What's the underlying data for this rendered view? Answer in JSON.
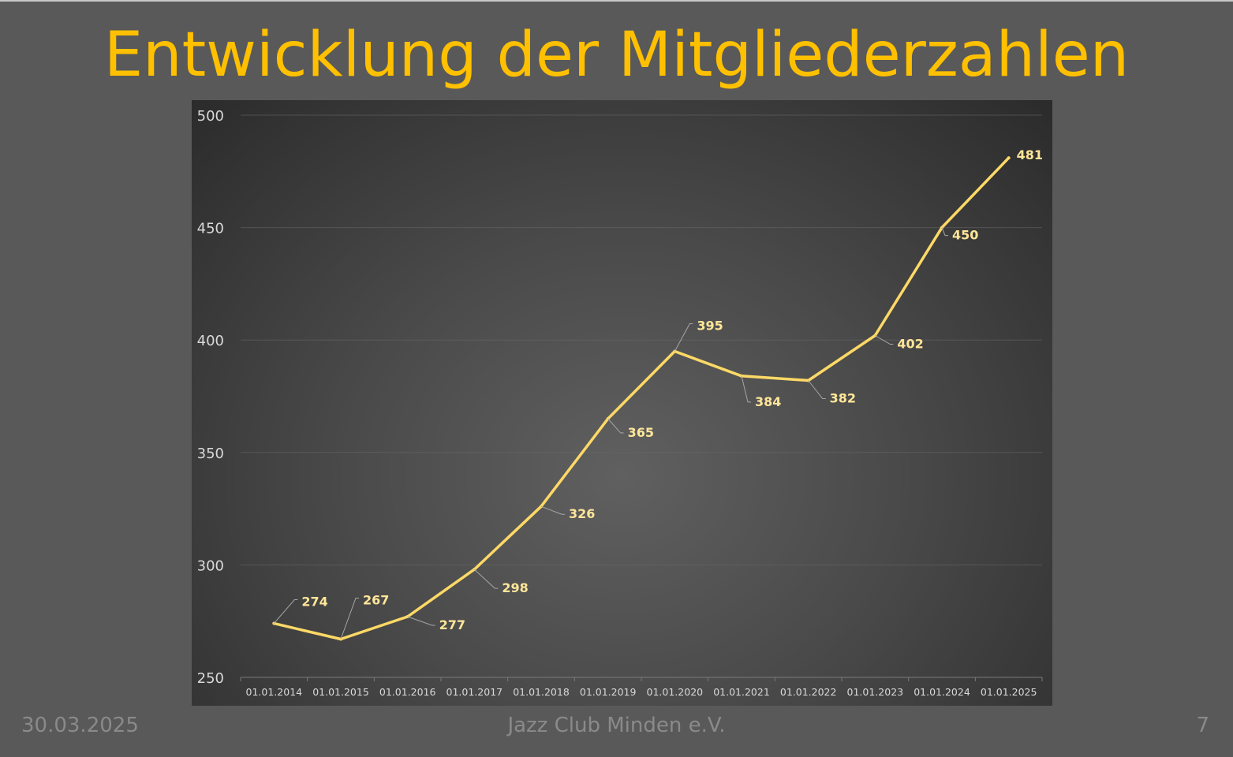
{
  "slide": {
    "title": "Entwicklung der Mitgliederzahlen",
    "footer_date": "30.03.2025",
    "footer_center": "Jazz Club Minden e.V.",
    "page_number": "7"
  },
  "colors": {
    "background": "#595959",
    "title": "#ffc000",
    "line": "#ffd966",
    "data_labels": "#ffe699",
    "axis_text": "#d9d9d9",
    "footer_text": "#8a8a8a"
  },
  "chart_data": {
    "type": "line",
    "categories": [
      "01.01.2014",
      "01.01.2015",
      "01.01.2016",
      "01.01.2017",
      "01.01.2018",
      "01.01.2019",
      "01.01.2020",
      "01.01.2021",
      "01.01.2022",
      "01.01.2023",
      "01.01.2024",
      "01.01.2025"
    ],
    "series": [
      {
        "values": [
          274,
          267,
          277,
          298,
          326,
          365,
          395,
          384,
          382,
          402,
          450,
          481
        ]
      }
    ],
    "y_ticks": [
      250,
      300,
      350,
      400,
      450,
      500
    ],
    "ylim": [
      250,
      500
    ],
    "grid": "horizontal",
    "legend": "none",
    "data_labels": true
  }
}
